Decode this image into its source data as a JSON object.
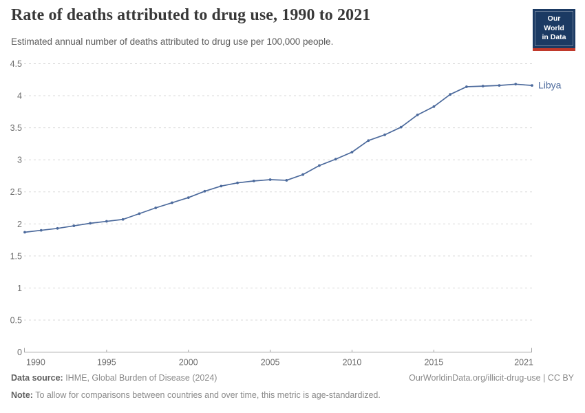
{
  "header": {
    "title": "Rate of deaths attributed to drug use, 1990 to 2021",
    "subtitle": "Estimated annual number of deaths attributed to drug use per 100,000 people.",
    "logo": {
      "line1": "Our World",
      "line2": "in Data"
    }
  },
  "chart_data": {
    "type": "line",
    "title": "Rate of deaths attributed to drug use, 1990 to 2021",
    "subtitle": "Estimated annual number of deaths attributed to drug use per 100,000 people.",
    "xlabel": "",
    "ylabel": "",
    "xlim": [
      1990,
      2021
    ],
    "ylim": [
      0,
      4.5
    ],
    "x_ticks": [
      1990,
      1995,
      2000,
      2005,
      2010,
      2015,
      2021
    ],
    "y_ticks": [
      0,
      0.5,
      1,
      1.5,
      2,
      2.5,
      3,
      3.5,
      4,
      4.5
    ],
    "grid": "horizontal-dashed",
    "legend": "end-of-line-label",
    "series": [
      {
        "name": "Libya",
        "color": "#4C6A9C",
        "x": [
          1990,
          1991,
          1992,
          1993,
          1994,
          1995,
          1996,
          1997,
          1998,
          1999,
          2000,
          2001,
          2002,
          2003,
          2004,
          2005,
          2006,
          2007,
          2008,
          2009,
          2010,
          2011,
          2012,
          2013,
          2014,
          2015,
          2016,
          2017,
          2018,
          2019,
          2020,
          2021
        ],
        "values": [
          1.87,
          1.9,
          1.93,
          1.97,
          2.01,
          2.04,
          2.07,
          2.16,
          2.25,
          2.33,
          2.41,
          2.51,
          2.59,
          2.64,
          2.67,
          2.69,
          2.68,
          2.77,
          2.91,
          3.01,
          3.12,
          3.3,
          3.39,
          3.51,
          3.7,
          3.83,
          4.02,
          4.14,
          4.15,
          4.16,
          4.18,
          4.16
        ]
      }
    ]
  },
  "footer": {
    "datasource_label": "Data source:",
    "datasource_text": " IHME, Global Burden of Disease (2024)",
    "credit": "OurWorldinData.org/illicit-drug-use | CC BY",
    "note_label": "Note:",
    "note_text": " To allow for comparisons between countries and over time, this metric is age-standardized."
  },
  "colors": {
    "line": "#4C6A9C",
    "logo_bg": "#1b3a63",
    "logo_stripe": "#c0392b",
    "grid": "#dadada",
    "axis": "#a3a3a3",
    "tick_text": "#6e6e6e"
  }
}
